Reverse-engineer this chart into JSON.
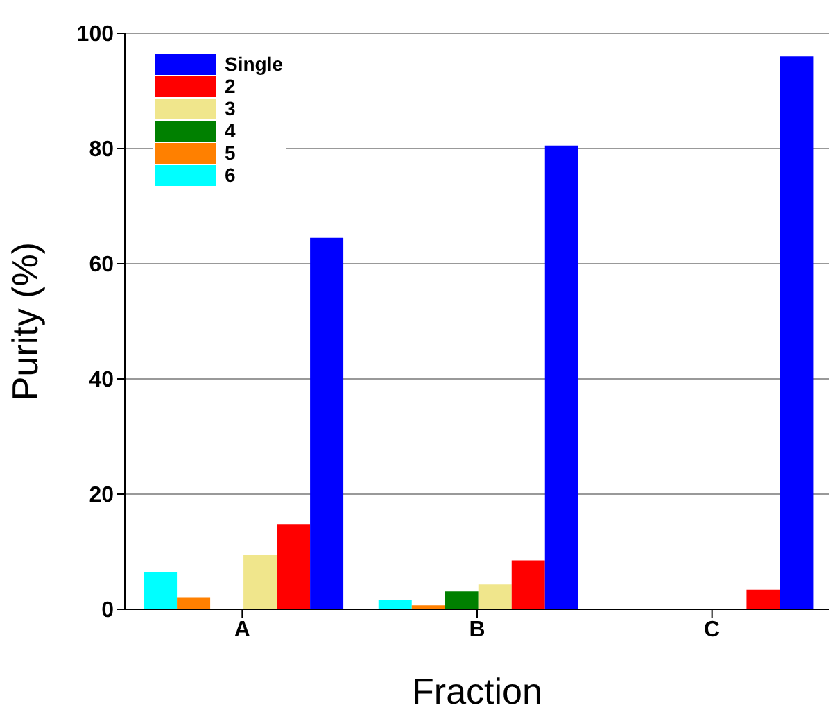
{
  "chart_data": {
    "type": "bar",
    "xlabel": "Fraction",
    "ylabel": "Purity (%)",
    "categories": [
      "A",
      "B",
      "C"
    ],
    "series": [
      {
        "name": "Single",
        "color": "#0000ff",
        "values": [
          64.5,
          80.5,
          96
        ]
      },
      {
        "name": "2",
        "color": "#ff0000",
        "values": [
          14.8,
          8.5,
          3.4
        ]
      },
      {
        "name": "3",
        "color": "#f0e68c",
        "values": [
          9.4,
          4.3,
          0
        ]
      },
      {
        "name": "4",
        "color": "#008000",
        "values": [
          0,
          3.1,
          0
        ]
      },
      {
        "name": "5",
        "color": "#ff8000",
        "values": [
          2,
          0.7,
          0
        ]
      },
      {
        "name": "6",
        "color": "#00ffff",
        "values": [
          6.5,
          1.7,
          0
        ]
      }
    ],
    "ylim": [
      0,
      100
    ],
    "yticks": [
      0,
      20,
      40,
      60,
      80,
      100
    ],
    "grid": "y",
    "legend": "top left"
  }
}
